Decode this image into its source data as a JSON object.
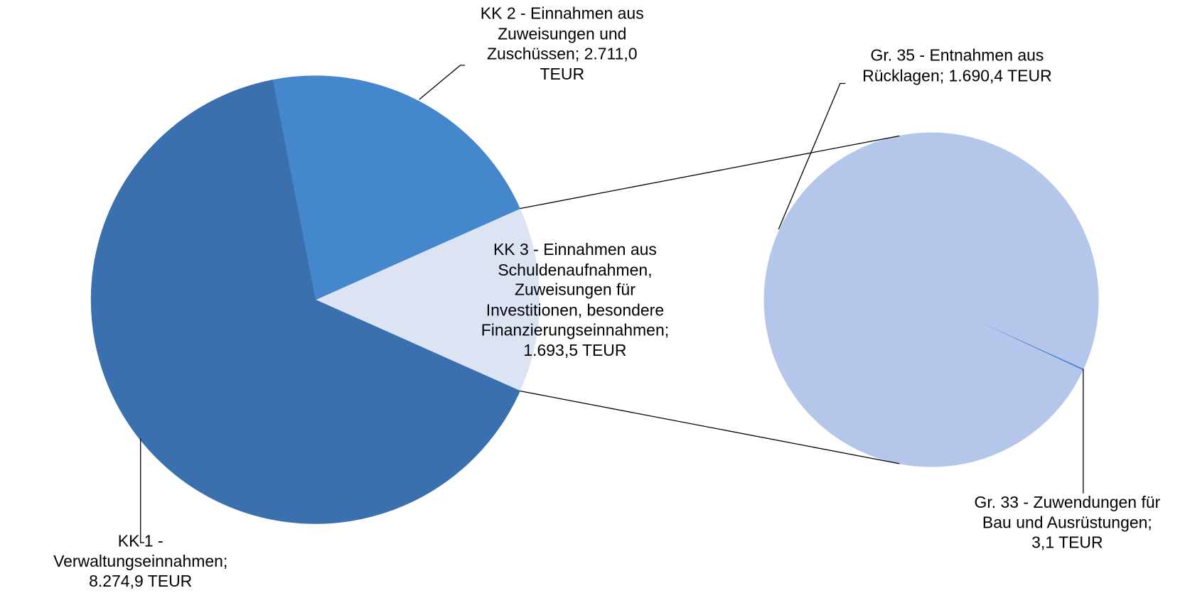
{
  "chart_data": {
    "type": "pie",
    "values": [
      8274.9,
      2711.0,
      1693.5
    ],
    "value_labels": [
      "KK 1 -\nVerwaltungseinnahmen;\n8.274,9 TEUR",
      "KK 2 - Einnahmen aus\nZuweisungen und\nZuschüssen; 2.711,0\nTEUR",
      "KK 3 - Einnahmen aus\nSchuldenaufnahmen,\nZuweisungen für\nInvestitionen, besondere\nFinanzierungseinnahmen;\n1.693,5 TEUR"
    ],
    "colors": [
      "#3a70ad",
      "#4487cc",
      "#dce4f4"
    ],
    "secondary": {
      "values": [
        1690.4,
        3.1
      ],
      "value_labels": [
        "Gr. 35 - Entnahmen aus\nRücklagen; 1.690,4 TEUR",
        "Gr. 33 - Zuwendungen für\nBau und Ausrüstungen;\n3,1 TEUR"
      ],
      "colors": [
        "#b4c7ea",
        "#4a7fd0"
      ]
    }
  }
}
